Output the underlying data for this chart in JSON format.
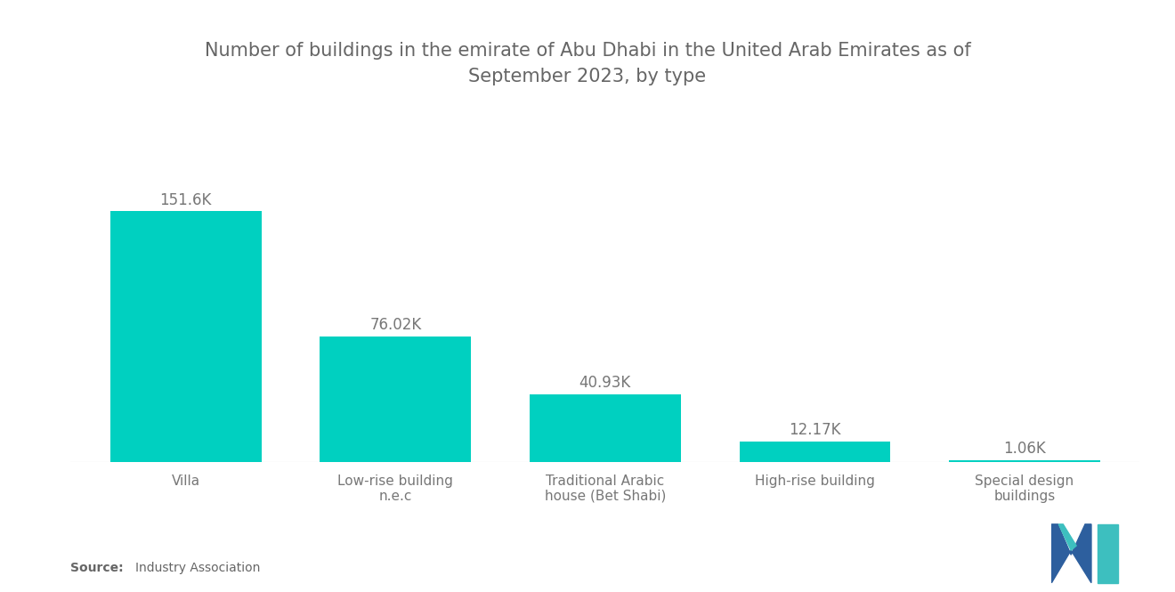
{
  "title": "Number of buildings in the emirate of Abu Dhabi in the United Arab Emirates as of\nSeptember 2023, by type",
  "categories": [
    "Villa",
    "Low-rise building\nn.e.c",
    "Traditional Arabic\nhouse (Bet Shabi)",
    "High-rise building",
    "Special design\nbuildings"
  ],
  "values": [
    151600,
    76020,
    40930,
    12170,
    1060
  ],
  "labels": [
    "151.6K",
    "76.02K",
    "40.93K",
    "12.17K",
    "1.06K"
  ],
  "bar_color": "#00D0C0",
  "background_color": "#FFFFFF",
  "title_color": "#666666",
  "label_color": "#777777",
  "tick_color": "#777777",
  "source_bold": "Source:",
  "source_rest": "   Industry Association",
  "title_fontsize": 15,
  "label_fontsize": 12,
  "tick_fontsize": 11,
  "source_fontsize": 10,
  "bar_width": 0.72,
  "ylim_max": 190000,
  "logo_dark_blue": "#2D5F9E",
  "logo_teal": "#3DBFBF"
}
